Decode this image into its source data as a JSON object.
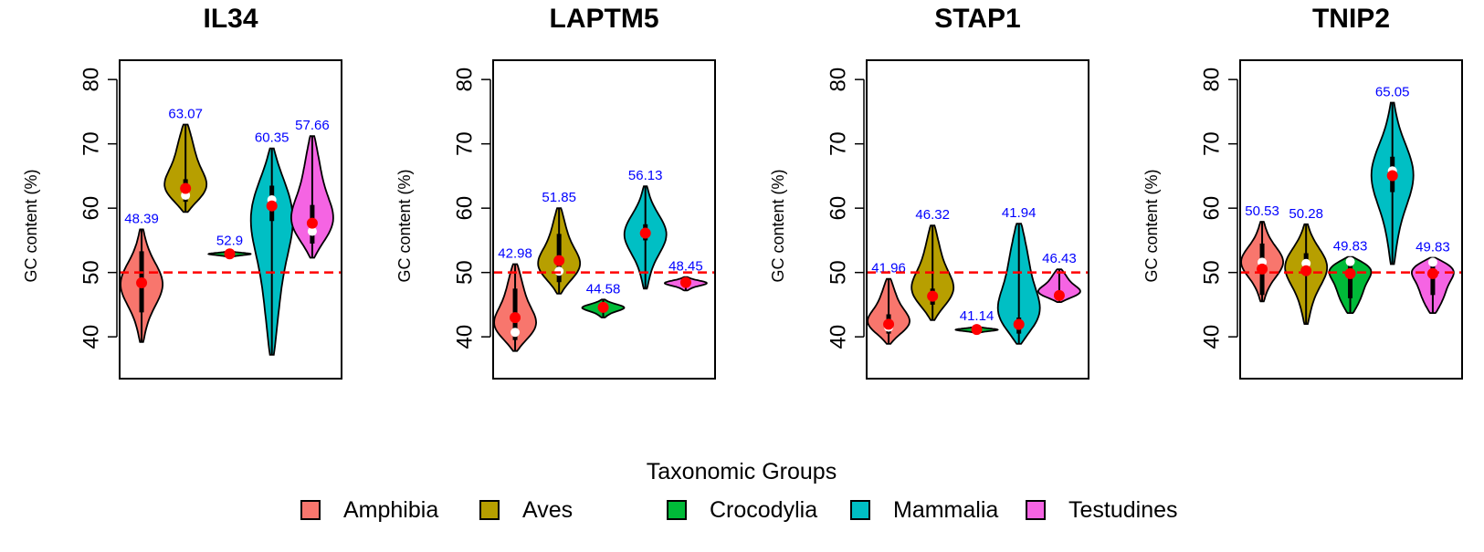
{
  "colors": {
    "Amphibia": "#F8766D",
    "Aves": "#B79F00",
    "Crocodylia": "#00BA38",
    "Mammalia": "#00BFC4",
    "Testudines": "#F564E3",
    "reference_line": "#ff0000",
    "mean_point": "#ff0000",
    "median_point": "#ffffff",
    "mean_label": "#0000ff"
  },
  "chart_data": {
    "type": "violin",
    "ylabel": "GC content (%)",
    "ylim": [
      33.5,
      83
    ],
    "yticks": [
      40,
      50,
      60,
      70,
      80
    ],
    "reference_line": 50,
    "grid": false,
    "legend": {
      "title": "Taxonomic Groups",
      "placement": "bottom-center",
      "entries": [
        "Amphibia",
        "Aves",
        "Crocodylia",
        "Mammalia",
        "Testudines"
      ]
    },
    "panels": [
      {
        "title": "IL34",
        "groups": [
          {
            "name": "Amphibia",
            "min": 39.2,
            "max": 56.7,
            "median": 48.3,
            "mean": 48.39,
            "mean_label": "48.39",
            "q1": 43.8,
            "q3": 53.3
          },
          {
            "name": "Aves",
            "min": 59.4,
            "max": 73.0,
            "median": 62.0,
            "mean": 63.07,
            "mean_label": "63.07",
            "q1": 61.0,
            "q3": 64.5
          },
          {
            "name": "Crocodylia",
            "min": 52.4,
            "max": 53.3,
            "median": 52.9,
            "mean": 52.9,
            "mean_label": "52.9",
            "q1": 52.8,
            "q3": 53.0
          },
          {
            "name": "Mammalia",
            "min": 37.2,
            "max": 69.3,
            "median": 61.3,
            "mean": 60.35,
            "mean_label": "60.35",
            "q1": 58.0,
            "q3": 63.5
          },
          {
            "name": "Testudines",
            "min": 52.3,
            "max": 71.2,
            "median": 56.4,
            "mean": 57.66,
            "mean_label": "57.66",
            "q1": 54.5,
            "q3": 60.5
          }
        ]
      },
      {
        "title": "LAPTM5",
        "groups": [
          {
            "name": "Amphibia",
            "min": 37.8,
            "max": 51.3,
            "median": 40.7,
            "mean": 42.98,
            "mean_label": "42.98",
            "q1": 39.5,
            "q3": 47.5
          },
          {
            "name": "Aves",
            "min": 46.7,
            "max": 60.0,
            "median": 50.2,
            "mean": 51.85,
            "mean_label": "51.85",
            "q1": 48.5,
            "q3": 56.0
          },
          {
            "name": "Crocodylia",
            "min": 43.0,
            "max": 45.8,
            "median": 44.6,
            "mean": 44.58,
            "mean_label": "44.58",
            "q1": 44.0,
            "q3": 45.3
          },
          {
            "name": "Mammalia",
            "min": 47.5,
            "max": 63.4,
            "median": 56.2,
            "mean": 56.13,
            "mean_label": "56.13",
            "q1": 55.0,
            "q3": 57.5
          },
          {
            "name": "Testudines",
            "min": 47.2,
            "max": 49.3,
            "median": 48.4,
            "mean": 48.45,
            "mean_label": "48.45",
            "q1": 48.0,
            "q3": 48.8
          }
        ]
      },
      {
        "title": "STAP1",
        "groups": [
          {
            "name": "Amphibia",
            "min": 38.9,
            "max": 49.0,
            "median": 41.5,
            "mean": 41.96,
            "mean_label": "41.96",
            "q1": 40.5,
            "q3": 43.5
          },
          {
            "name": "Aves",
            "min": 42.6,
            "max": 57.3,
            "median": 46.2,
            "mean": 46.32,
            "mean_label": "46.32",
            "q1": 45.0,
            "q3": 47.5
          },
          {
            "name": "Crocodylia",
            "min": 40.6,
            "max": 41.6,
            "median": 41.1,
            "mean": 41.14,
            "mean_label": "41.14",
            "q1": 40.9,
            "q3": 41.3
          },
          {
            "name": "Mammalia",
            "min": 38.9,
            "max": 57.6,
            "median": 41.8,
            "mean": 41.94,
            "mean_label": "41.94",
            "q1": 40.5,
            "q3": 43.0
          },
          {
            "name": "Testudines",
            "min": 45.4,
            "max": 50.5,
            "median": 46.5,
            "mean": 46.43,
            "mean_label": "46.43",
            "q1": 46.0,
            "q3": 47.0
          }
        ]
      },
      {
        "title": "TNIP2",
        "groups": [
          {
            "name": "Amphibia",
            "min": 45.5,
            "max": 57.9,
            "median": 51.6,
            "mean": 50.53,
            "mean_label": "50.53",
            "q1": 46.5,
            "q3": 54.5
          },
          {
            "name": "Aves",
            "min": 42.0,
            "max": 57.5,
            "median": 51.4,
            "mean": 50.28,
            "mean_label": "50.28",
            "q1": 49.5,
            "q3": 53.0
          },
          {
            "name": "Crocodylia",
            "min": 43.7,
            "max": 52.4,
            "median": 51.7,
            "mean": 49.83,
            "mean_label": "49.83",
            "q1": 46.0,
            "q3": 52.2
          },
          {
            "name": "Mammalia",
            "min": 51.3,
            "max": 76.4,
            "median": 65.8,
            "mean": 65.05,
            "mean_label": "65.05",
            "q1": 62.5,
            "q3": 68.0
          },
          {
            "name": "Testudines",
            "min": 43.7,
            "max": 52.3,
            "median": 51.6,
            "mean": 49.83,
            "mean_label": "49.83",
            "q1": 46.5,
            "q3": 52.1
          }
        ]
      }
    ]
  }
}
